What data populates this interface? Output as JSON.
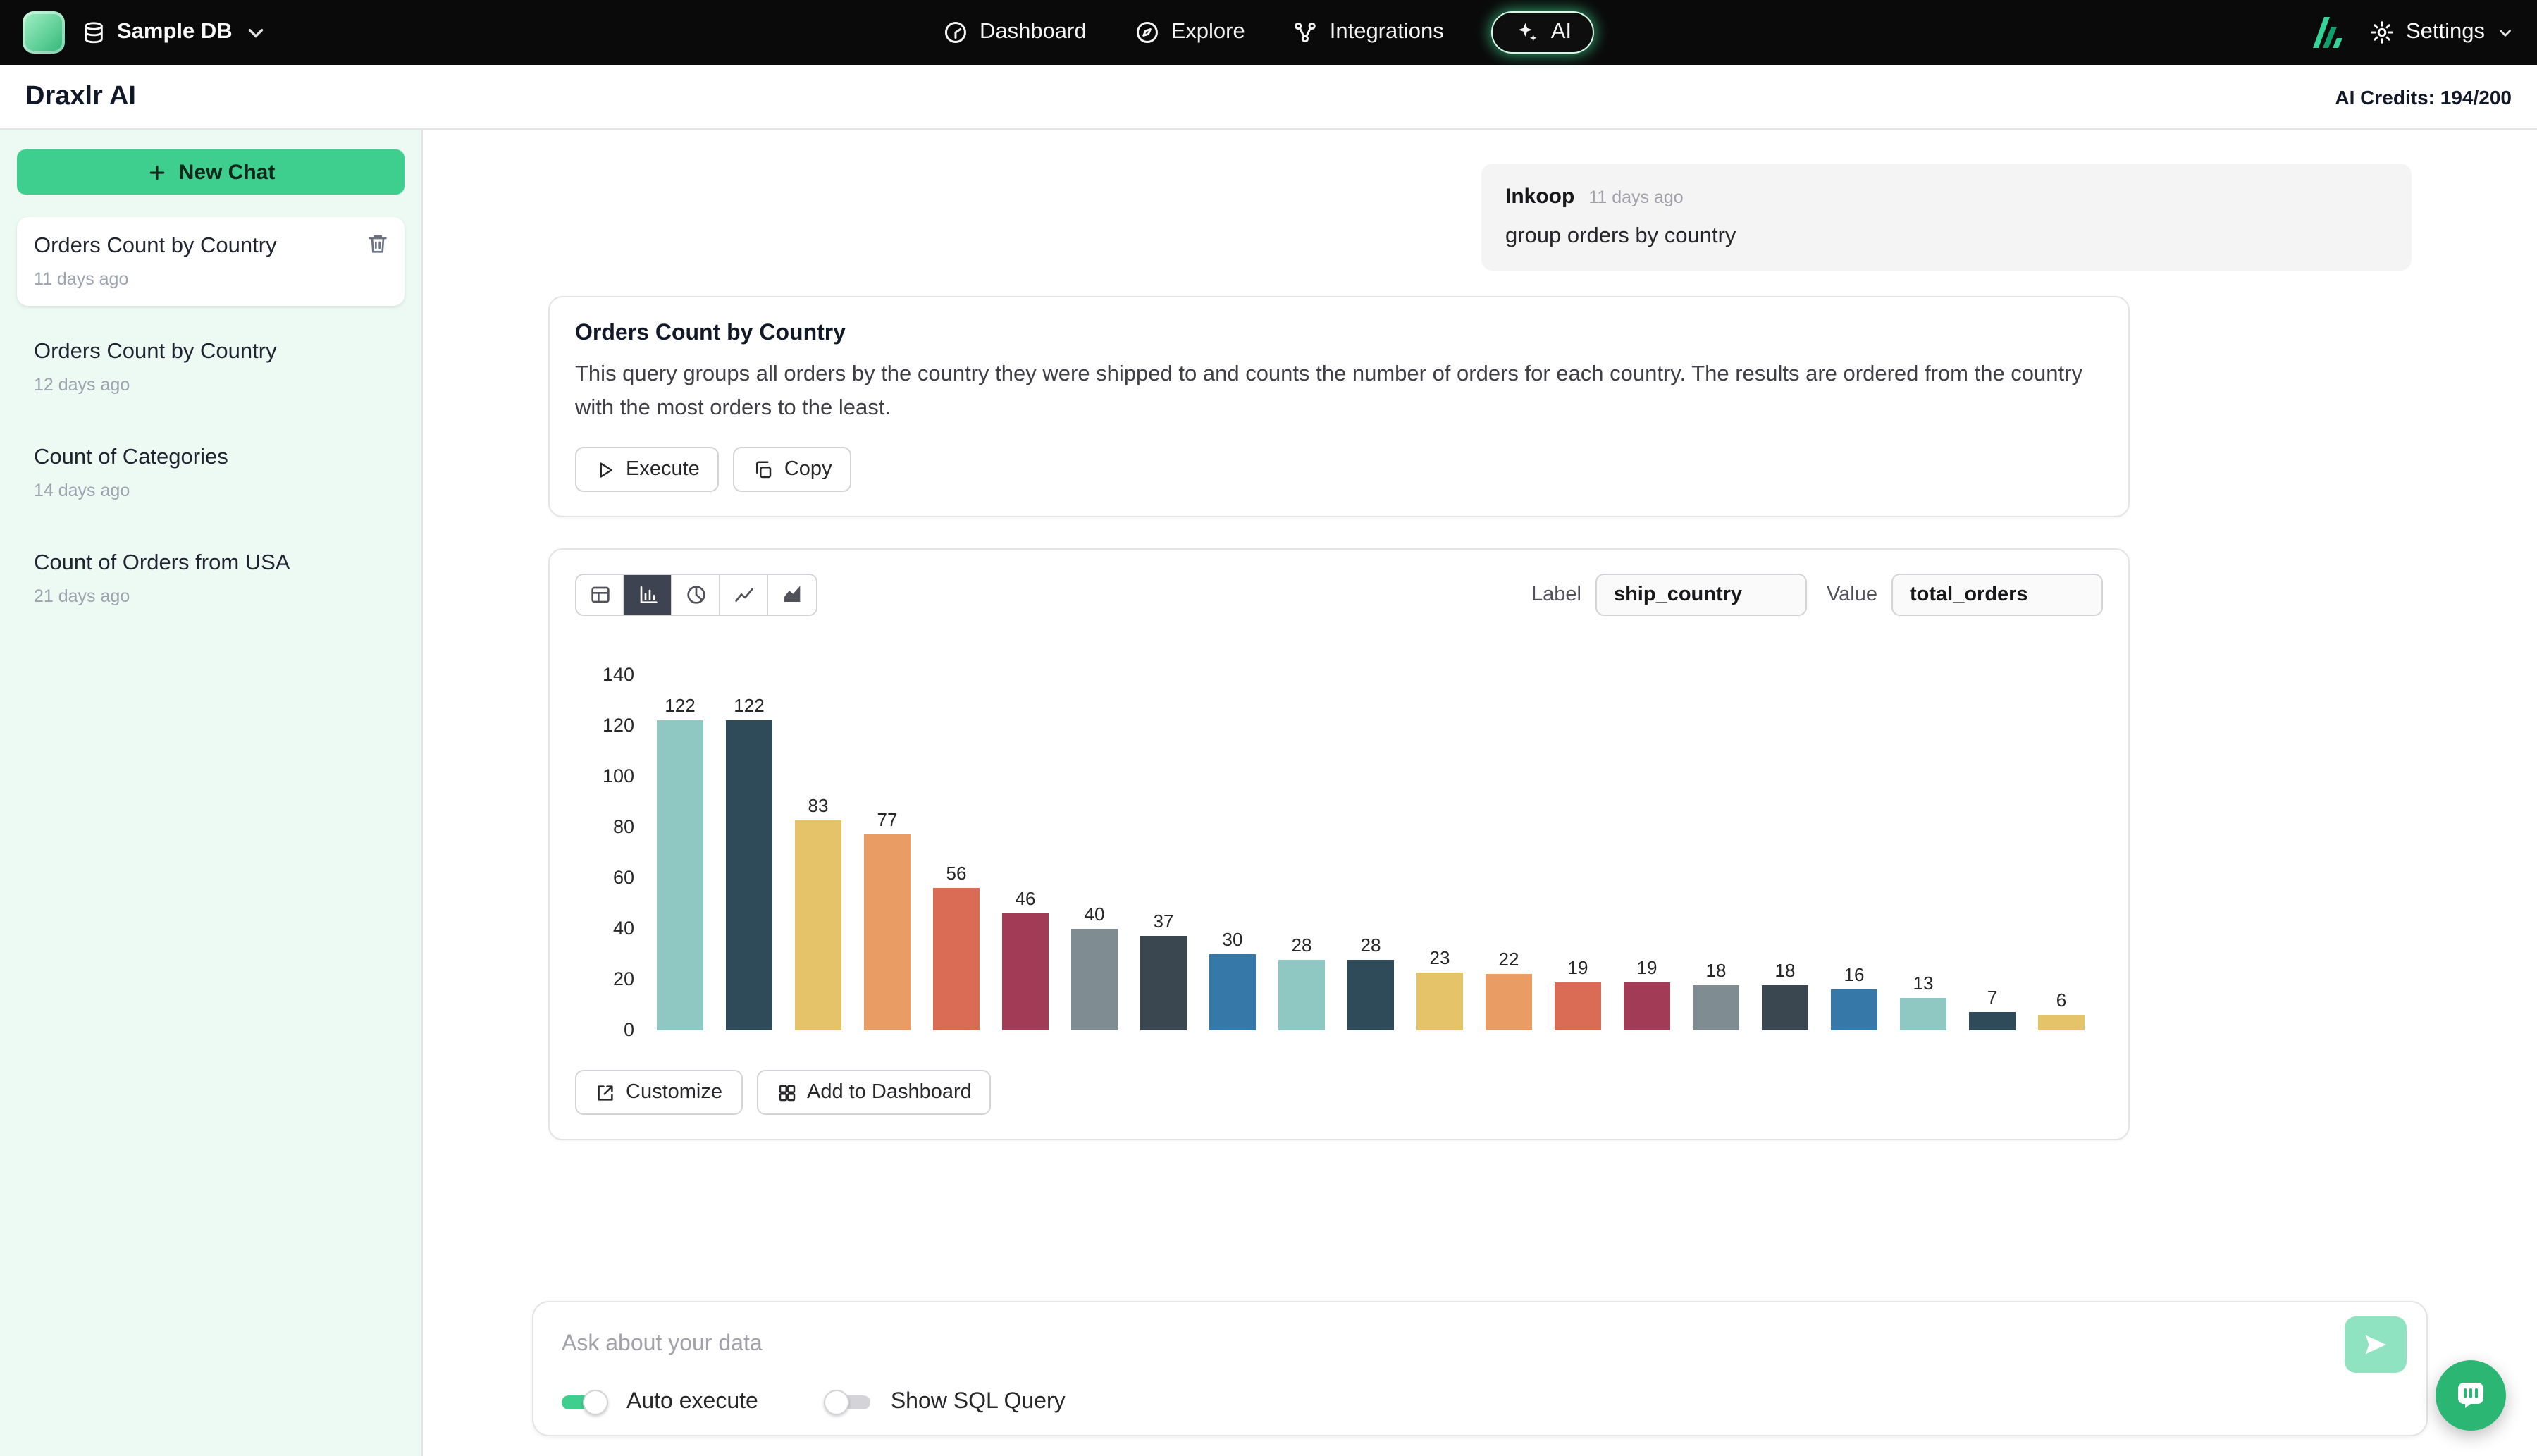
{
  "theme": {
    "accent_green": "#3ecf8e",
    "navbar_bg": "#0a0a0a",
    "sidebar_bg": "#edfaf3",
    "intercom_green": "#2bb673"
  },
  "navbar": {
    "database_label": "Sample DB",
    "items": [
      {
        "label": "Dashboard"
      },
      {
        "label": "Explore"
      },
      {
        "label": "Integrations"
      },
      {
        "label": "AI",
        "active": true
      }
    ],
    "settings_label": "Settings"
  },
  "header": {
    "title": "Draxlr AI",
    "credits": "AI Credits: 194/200"
  },
  "sidebar": {
    "new_chat_label": "New Chat",
    "chats": [
      {
        "title": "Orders Count by Country",
        "time": "11 days ago",
        "selected": true
      },
      {
        "title": "Orders Count by Country",
        "time": "12 days ago",
        "selected": false
      },
      {
        "title": "Count of Categories",
        "time": "14 days ago",
        "selected": false
      },
      {
        "title": "Count of Orders from USA",
        "time": "21 days ago",
        "selected": false
      }
    ]
  },
  "chat": {
    "user_message": {
      "author": "Inkoop",
      "time": "11 days ago",
      "text": "group orders by country"
    },
    "query_card": {
      "title": "Orders Count by Country",
      "description": "This query groups all orders by the country they were shipped to and counts the number of orders for each country. The results are ordered from the country with the most orders to the least.",
      "execute_label": "Execute",
      "copy_label": "Copy"
    },
    "chart_card": {
      "active_type": "bar",
      "label_field_label": "Label",
      "label_field_value": "ship_country",
      "value_field_label": "Value",
      "value_field_value": "total_orders",
      "customize_label": "Customize",
      "add_to_dashboard_label": "Add to Dashboard"
    }
  },
  "chart_data": {
    "type": "bar",
    "title": "Orders Count by Country",
    "label_column": "ship_country",
    "value_column": "total_orders",
    "values": [
      122,
      122,
      83,
      77,
      56,
      46,
      40,
      37,
      30,
      28,
      28,
      23,
      22,
      19,
      19,
      18,
      18,
      16,
      13,
      7,
      6
    ],
    "y_ticks": [
      0,
      20,
      40,
      60,
      80,
      100,
      120,
      140
    ],
    "ylim": [
      0,
      140
    ],
    "grid": false,
    "legend": false,
    "bar_colors": [
      "#8fc7c2",
      "#2f4b5a",
      "#e5c368",
      "#e99c64",
      "#da6c55",
      "#a23b55",
      "#7f8d92",
      "#3b4750",
      "#3679a8"
    ]
  },
  "composer": {
    "placeholder": "Ask about your data",
    "auto_execute_label": "Auto execute",
    "auto_execute_on": true,
    "show_sql_label": "Show SQL Query",
    "show_sql_on": false
  }
}
